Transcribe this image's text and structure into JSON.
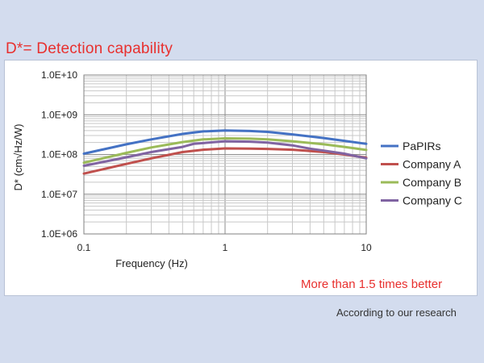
{
  "slide": {
    "title": "D*=  Detection capability",
    "callout": "More than 1.5 times better",
    "footnote": "According to our research"
  },
  "chart_data": {
    "type": "line",
    "title": "",
    "xlabel": "Frequency (Hz)",
    "ylabel": "D* (cm√Hz/W)",
    "x_scale": "log",
    "y_scale": "log",
    "xlim": [
      0.1,
      10
    ],
    "ylim": [
      1000000,
      10000000000
    ],
    "x_ticks": [
      0.1,
      1,
      10
    ],
    "x_tick_labels": [
      "0.1",
      "1",
      "10"
    ],
    "y_ticks": [
      1000000,
      10000000,
      100000000,
      1000000000,
      10000000000
    ],
    "y_tick_labels": [
      "1.0E+06",
      "1.0E+07",
      "1.0E+08",
      "1.0E+09",
      "1.0E+10"
    ],
    "grid": true,
    "legend_position": "right",
    "series": [
      {
        "name": "PaPIRs",
        "color": "#4472c4",
        "points": [
          [
            0.1,
            105000000
          ],
          [
            0.2,
            180000000
          ],
          [
            0.3,
            240000000
          ],
          [
            0.5,
            330000000
          ],
          [
            0.7,
            380000000
          ],
          [
            1,
            400000000
          ],
          [
            1.5,
            390000000
          ],
          [
            2,
            370000000
          ],
          [
            3,
            320000000
          ],
          [
            5,
            260000000
          ],
          [
            7,
            220000000
          ],
          [
            10,
            185000000
          ]
        ]
      },
      {
        "name": "Company A",
        "color": "#c0504d",
        "points": [
          [
            0.1,
            33000000
          ],
          [
            0.2,
            58000000
          ],
          [
            0.3,
            80000000
          ],
          [
            0.5,
            115000000
          ],
          [
            0.7,
            132000000
          ],
          [
            1,
            142000000
          ],
          [
            1.5,
            140000000
          ],
          [
            2,
            138000000
          ],
          [
            3,
            132000000
          ],
          [
            5,
            115000000
          ],
          [
            7,
            100000000
          ],
          [
            10,
            83000000
          ]
        ]
      },
      {
        "name": "Company B",
        "color": "#9bbb59",
        "points": [
          [
            0.1,
            62000000
          ],
          [
            0.2,
            110000000
          ],
          [
            0.3,
            150000000
          ],
          [
            0.5,
            205000000
          ],
          [
            0.7,
            240000000
          ],
          [
            1,
            255000000
          ],
          [
            1.5,
            250000000
          ],
          [
            2,
            240000000
          ],
          [
            3,
            215000000
          ],
          [
            5,
            180000000
          ],
          [
            7,
            155000000
          ],
          [
            10,
            130000000
          ]
        ]
      },
      {
        "name": "Company C",
        "color": "#8064a2",
        "points": [
          [
            0.1,
            52000000
          ],
          [
            0.2,
            85000000
          ],
          [
            0.3,
            115000000
          ],
          [
            0.5,
            155000000
          ],
          [
            0.6,
            185000000
          ],
          [
            1,
            215000000
          ],
          [
            1.5,
            210000000
          ],
          [
            2,
            200000000
          ],
          [
            3,
            170000000
          ],
          [
            4,
            140000000
          ],
          [
            5,
            125000000
          ],
          [
            7,
            105000000
          ],
          [
            10,
            80000000
          ]
        ]
      }
    ]
  }
}
